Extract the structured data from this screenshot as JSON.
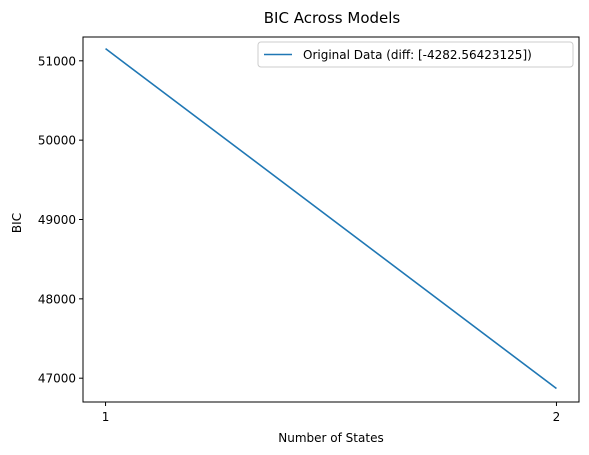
{
  "chart_data": {
    "type": "line",
    "title": "BIC Across Models",
    "xlabel": "Number of States",
    "ylabel": "BIC",
    "x": [
      1,
      2
    ],
    "xticks": [
      1,
      2
    ],
    "yticks": [
      47000,
      48000,
      49000,
      50000,
      51000
    ],
    "ylim": [
      46700,
      51300
    ],
    "grid": false,
    "legend_position": "upper right",
    "series": [
      {
        "name": "Original Data (diff: [-4282.56423125])",
        "values": [
          51153.0,
          46870.4
        ],
        "color": "#1f77b4"
      }
    ]
  }
}
